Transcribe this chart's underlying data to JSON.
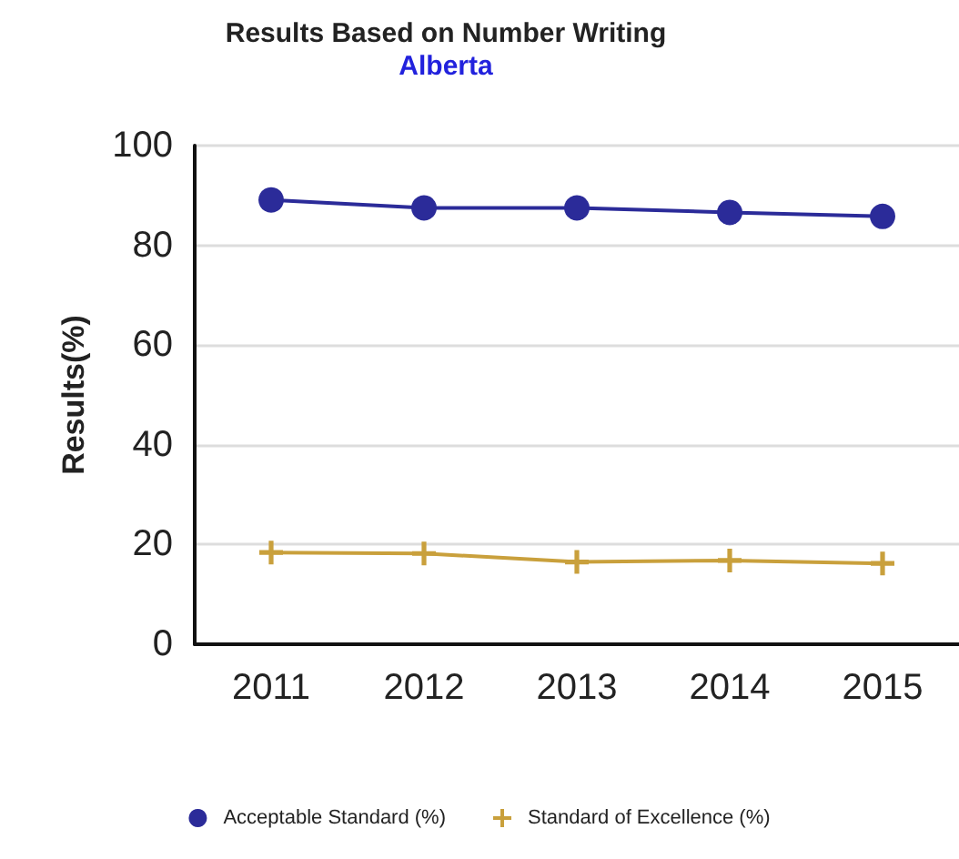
{
  "chart_data": {
    "type": "line",
    "title": "Results Based on Number Writing",
    "subtitle": "Alberta",
    "ylabel": "Results(%)",
    "categories": [
      "2011",
      "2012",
      "2013",
      "2014",
      "2015"
    ],
    "series": [
      {
        "name": "Acceptable Standard (%)",
        "color": "#2b2b99",
        "marker": "circle",
        "values": [
          89.1,
          87.5,
          87.5,
          86.6,
          85.8
        ]
      },
      {
        "name": "Standard of Excellence (%)",
        "color": "#c9a03c",
        "marker": "cross",
        "values": [
          18.4,
          18.2,
          16.5,
          16.8,
          16.2
        ]
      }
    ],
    "ylim": [
      0,
      100
    ],
    "yticks": [
      0,
      20,
      40,
      60,
      80,
      100
    ],
    "grid": "y",
    "legend": "bottom"
  }
}
